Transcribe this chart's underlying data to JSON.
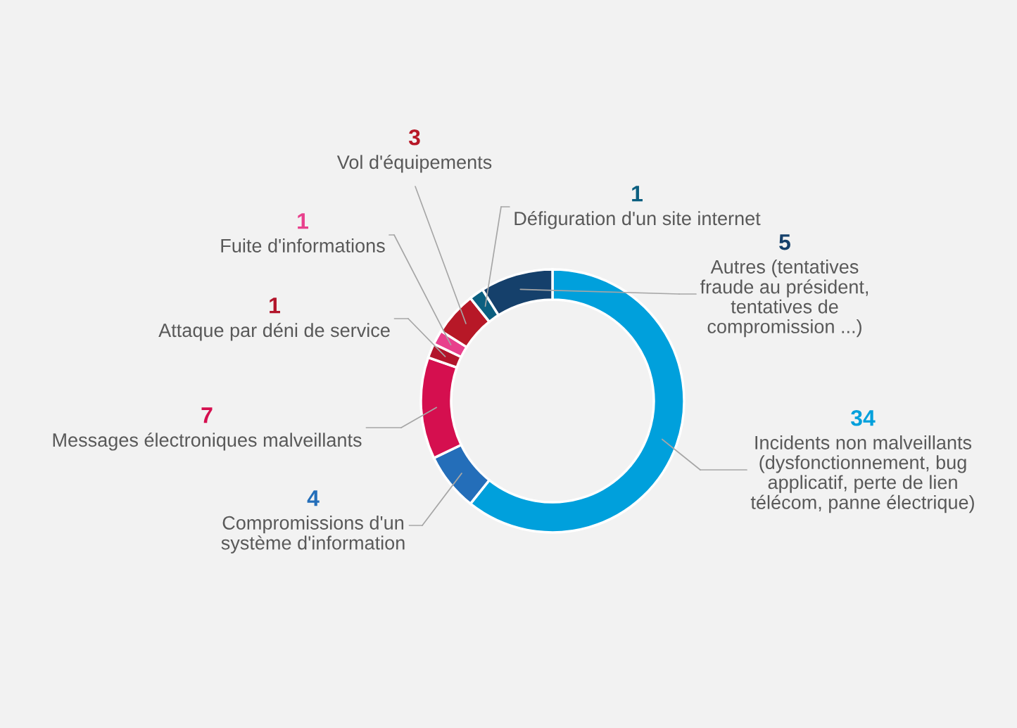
{
  "chart_data": {
    "type": "donut",
    "categories": [
      "Incidents non malveillants\n(dysfonctionnement, bug\napplicatif, perte de lien\ntélécom, panne électrique)",
      "Compromissions d'un\nsystème d'information",
      "Messages électroniques malveillants",
      "Attaque par déni de service",
      "Fuite d'informations",
      "Vol d'équipements",
      "Défiguration d'un site internet",
      "Autres (tentatives\nfraude au président,\ntentatives de\ncompromission ...)"
    ],
    "values": [
      34,
      4,
      7,
      1,
      1,
      3,
      1,
      5
    ],
    "colors": [
      "#00a0dc",
      "#246eb9",
      "#d50f4f",
      "#b2152b",
      "#e8408c",
      "#b71827",
      "#0b5f80",
      "#15406b"
    ],
    "data_labels": true
  }
}
